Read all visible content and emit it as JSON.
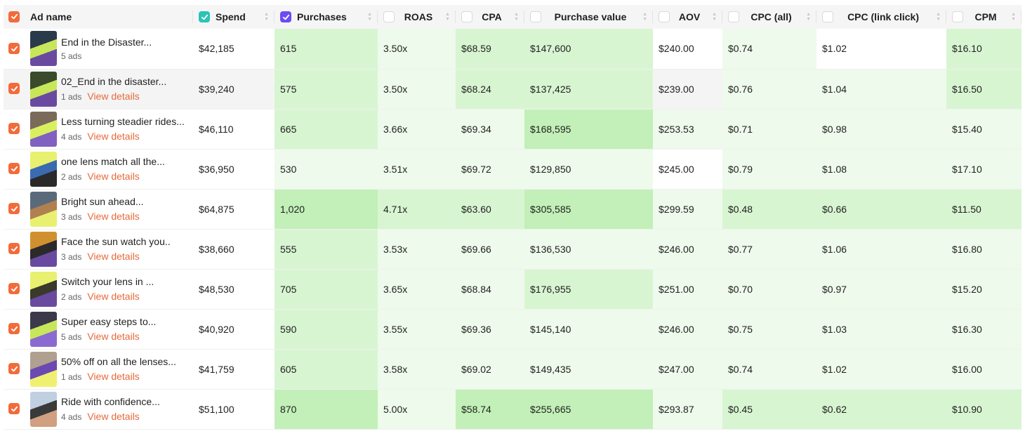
{
  "colors": {
    "accent": "#f26b3a",
    "spend_check": "#2cc3b8",
    "purchases_check": "#6c4cf0",
    "heat_light": "#eefaeb",
    "heat_mid": "#d8f5d1",
    "heat_strong": "#c2f0b8",
    "link": "#e66a3c"
  },
  "header": {
    "ad_name": "Ad name",
    "columns": [
      {
        "key": "spend",
        "label": "Spend",
        "checked": true,
        "check_color": "teal"
      },
      {
        "key": "purchases",
        "label": "Purchases",
        "checked": true,
        "check_color": "purple"
      },
      {
        "key": "roas",
        "label": "ROAS",
        "checked": false
      },
      {
        "key": "cpa",
        "label": "CPA",
        "checked": false
      },
      {
        "key": "purchase_value",
        "label": "Purchase value",
        "checked": false
      },
      {
        "key": "aov",
        "label": "AOV",
        "checked": false
      },
      {
        "key": "cpc_all",
        "label": "CPC (all)",
        "checked": false
      },
      {
        "key": "cpc_link",
        "label": "CPC (link click)",
        "checked": false
      },
      {
        "key": "cpm",
        "label": "CPM",
        "checked": false
      }
    ]
  },
  "rows": [
    {
      "title": "End in the Disaster...",
      "ads": "5 ads",
      "link": "",
      "spend": "$42,185",
      "purchases": "615",
      "roas": "3.50x",
      "cpa": "$68.59",
      "purchase_value": "$147,600",
      "aov": "$240.00",
      "cpc_all": "$0.74",
      "cpc_link": "$1.02",
      "cpm": "$16.10"
    },
    {
      "title": "02_End in the disaster...",
      "ads": "1 ads",
      "link": "View details",
      "spend": "$39,240",
      "purchases": "575",
      "roas": "3.50x",
      "cpa": "$68.24",
      "purchase_value": "$137,425",
      "aov": "$239.00",
      "cpc_all": "$0.76",
      "cpc_link": "$1.04",
      "cpm": "$16.50"
    },
    {
      "title": "Less turning steadier rides...",
      "ads": "4 ads",
      "link": "View details",
      "spend": "$46,110",
      "purchases": "665",
      "roas": "3.66x",
      "cpa": "$69.34",
      "purchase_value": "$168,595",
      "aov": "$253.53",
      "cpc_all": "$0.71",
      "cpc_link": "$0.98",
      "cpm": "$15.40"
    },
    {
      "title": "one lens match all the...",
      "ads": "2 ads",
      "link": "View details",
      "spend": "$36,950",
      "purchases": "530",
      "roas": "3.51x",
      "cpa": "$69.72",
      "purchase_value": "$129,850",
      "aov": "$245.00",
      "cpc_all": "$0.79",
      "cpc_link": "$1.08",
      "cpm": "$17.10"
    },
    {
      "title": "Bright sun ahead...",
      "ads": "3 ads",
      "link": "View details",
      "spend": "$64,875",
      "purchases": "1,020",
      "roas": "4.71x",
      "cpa": "$63.60",
      "purchase_value": "$305,585",
      "aov": "$299.59",
      "cpc_all": "$0.48",
      "cpc_link": "$0.66",
      "cpm": "$11.50"
    },
    {
      "title": "Face the sun watch you..",
      "ads": "3 ads",
      "link": "View details",
      "spend": "$38,660",
      "purchases": "555",
      "roas": "3.53x",
      "cpa": "$69.66",
      "purchase_value": "$136,530",
      "aov": "$246.00",
      "cpc_all": "$0.77",
      "cpc_link": "$1.06",
      "cpm": "$16.80"
    },
    {
      "title": "Switch your lens in ...",
      "ads": "2 ads",
      "link": "View details",
      "spend": "$48,530",
      "purchases": "705",
      "roas": "3.65x",
      "cpa": "$68.84",
      "purchase_value": "$176,955",
      "aov": "$251.00",
      "cpc_all": "$0.70",
      "cpc_link": "$0.97",
      "cpm": "$15.20"
    },
    {
      "title": "Super easy steps to...",
      "ads": "5 ads",
      "link": "View details",
      "spend": "$40,920",
      "purchases": "590",
      "roas": "3.55x",
      "cpa": "$69.36",
      "purchase_value": "$145,140",
      "aov": "$246.00",
      "cpc_all": "$0.75",
      "cpc_link": "$1.03",
      "cpm": "$16.30"
    },
    {
      "title": "50% off on all the lenses...",
      "ads": "1 ads",
      "link": "View details",
      "spend": "$41,759",
      "purchases": "605",
      "roas": "3.58x",
      "cpa": "$69.02",
      "purchase_value": "$149,435",
      "aov": "$247.00",
      "cpc_all": "$0.74",
      "cpc_link": "$1.02",
      "cpm": "$16.00"
    },
    {
      "title": "Ride with confidence...",
      "ads": "4 ads",
      "link": "View details",
      "spend": "$51,100",
      "purchases": "870",
      "roas": "5.00x",
      "cpa": "$58.74",
      "purchase_value": "$255,665",
      "aov": "$293.87",
      "cpc_all": "$0.45",
      "cpc_link": "$0.62",
      "cpm": "$10.90"
    }
  ],
  "heat": [
    {
      "purchases": "mid",
      "roas": "light",
      "cpa": "mid",
      "purchase_value": "mid",
      "aov": "none",
      "cpc_all": "light",
      "cpc_link": "none",
      "cpm": "mid"
    },
    {
      "purchases": "mid",
      "roas": "light",
      "cpa": "mid",
      "purchase_value": "mid",
      "aov": "none",
      "cpc_all": "light",
      "cpc_link": "light",
      "cpm": "mid"
    },
    {
      "purchases": "mid",
      "roas": "light",
      "cpa": "light",
      "purchase_value": "strong",
      "aov": "light",
      "cpc_all": "light",
      "cpc_link": "light",
      "cpm": "light"
    },
    {
      "purchases": "light",
      "roas": "light",
      "cpa": "light",
      "purchase_value": "light",
      "aov": "none",
      "cpc_all": "light",
      "cpc_link": "light",
      "cpm": "light"
    },
    {
      "purchases": "strong",
      "roas": "mid",
      "cpa": "mid",
      "purchase_value": "strong",
      "aov": "light",
      "cpc_all": "mid",
      "cpc_link": "mid",
      "cpm": "mid"
    },
    {
      "purchases": "mid",
      "roas": "light",
      "cpa": "light",
      "purchase_value": "light",
      "aov": "light",
      "cpc_all": "light",
      "cpc_link": "light",
      "cpm": "light"
    },
    {
      "purchases": "mid",
      "roas": "light",
      "cpa": "light",
      "purchase_value": "mid",
      "aov": "light",
      "cpc_all": "light",
      "cpc_link": "light",
      "cpm": "light"
    },
    {
      "purchases": "mid",
      "roas": "light",
      "cpa": "light",
      "purchase_value": "light",
      "aov": "light",
      "cpc_all": "light",
      "cpc_link": "light",
      "cpm": "light"
    },
    {
      "purchases": "mid",
      "roas": "light",
      "cpa": "light",
      "purchase_value": "light",
      "aov": "light",
      "cpc_all": "light",
      "cpc_link": "light",
      "cpm": "light"
    },
    {
      "purchases": "strong",
      "roas": "light",
      "cpa": "strong",
      "purchase_value": "strong",
      "aov": "light",
      "cpc_all": "mid",
      "cpc_link": "mid",
      "cpm": "mid"
    }
  ]
}
